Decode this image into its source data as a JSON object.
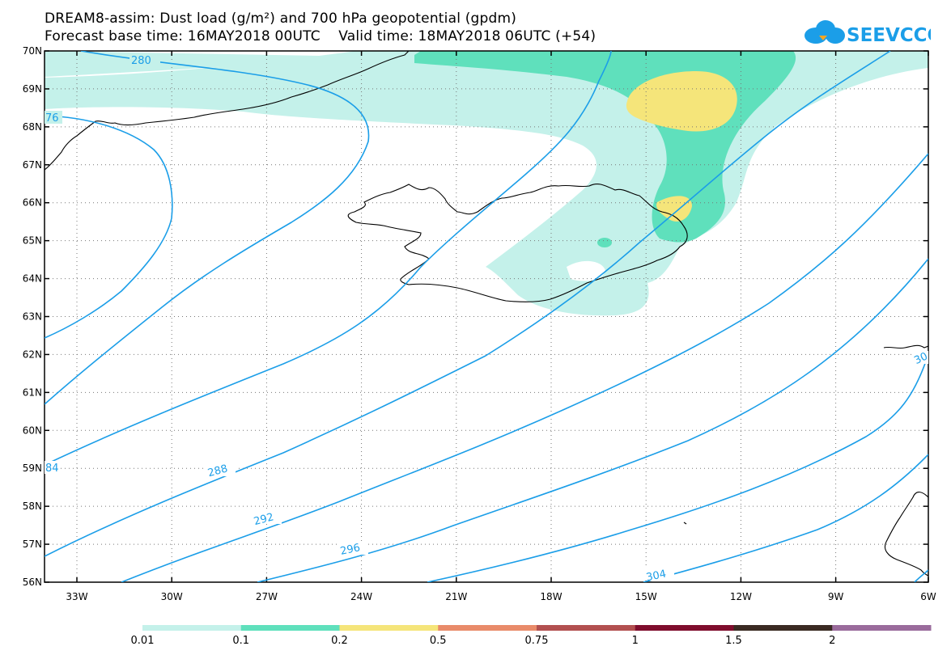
{
  "title": {
    "line1": "DREAM8-assim: Dust load (g/m²) and 700 hPa geopotential (gpdm)",
    "line2": "Forecast base time: 16MAY2018 00UTC    Valid time: 18MAY2018 06UTC (+54)"
  },
  "logo": {
    "text": "SEEVCCC",
    "icon": "cloud-logo-icon"
  },
  "map": {
    "lon_labels": [
      "33W",
      "30W",
      "27W",
      "24W",
      "21W",
      "18W",
      "15W",
      "12W",
      "9W",
      "6W"
    ],
    "lat_labels": [
      "70N",
      "69N",
      "68N",
      "67N",
      "66N",
      "65N",
      "64N",
      "63N",
      "62N",
      "61N",
      "60N",
      "59N",
      "58N",
      "57N",
      "56N"
    ],
    "contour_labels": [
      "280",
      "76",
      "84",
      "288",
      "292",
      "296",
      "304",
      "30"
    ],
    "contour_color": "#1b9ee8"
  },
  "colorbar": {
    "ticks": [
      "0.01",
      "0.1",
      "0.2",
      "0.5",
      "0.75",
      "1",
      "1.5",
      "2"
    ],
    "colors": [
      "#c4f1ea",
      "#5fe0bc",
      "#f5e57a",
      "#e98b6a",
      "#b25050",
      "#7f0d2d",
      "#3a2a22",
      "#9a6b9c"
    ]
  }
}
